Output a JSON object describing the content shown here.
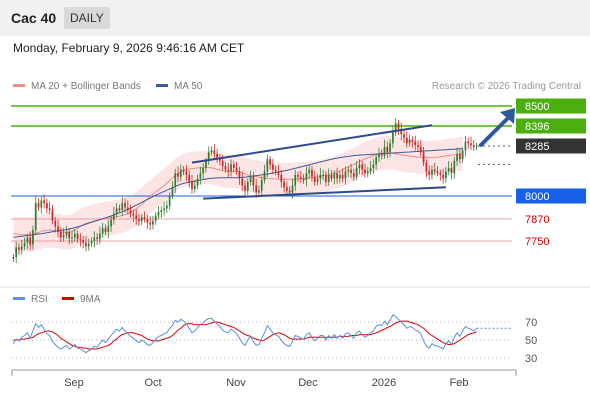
{
  "header": {
    "symbol": "Cac 40",
    "timeframe": "DAILY"
  },
  "timestamp": "Monday, February 9, 2026 9:46:16 AM CET",
  "legend": {
    "ma20": "MA 20 + Bollinger Bands",
    "ma50": "MA 50",
    "rsi": "RSI",
    "ma9": "9MA"
  },
  "credit": "Research © 2026 Trading Central",
  "colors": {
    "candle_up": "#2e7d32",
    "candle_down": "#c62828",
    "bollinger_fill": "#fde0e0",
    "ma20": "#f28b82",
    "ma50": "#3d5a99",
    "target": "#4caf10",
    "support_blue": "#1560e6",
    "support_red": "#cc0000",
    "current": "#333333",
    "channel": "#2e4a8a",
    "rsi": "#5b8fd9",
    "rsi_ma": "#dd0000"
  },
  "chart_data": [
    {
      "type": "line",
      "subtype": "candlestick",
      "y_axis": {
        "ticks": [
          "8500",
          "8396",
          "8285",
          "8000",
          "7870",
          "7750"
        ],
        "min": 7660,
        "max": 8620
      },
      "x_axis": {
        "labels": [
          "Sep",
          "Oct",
          "Nov",
          "Dec",
          "2026",
          "Feb"
        ]
      },
      "levels": [
        {
          "label": "8500",
          "value": 8500,
          "role": "target"
        },
        {
          "label": "8396",
          "value": 8396,
          "role": "target"
        },
        {
          "label": "8285",
          "value": 8285,
          "role": "current"
        },
        {
          "label": "8000",
          "value": 8000,
          "role": "pivot"
        },
        {
          "label": "7870",
          "value": 7870,
          "role": "support"
        },
        {
          "label": "7750",
          "value": 7750,
          "role": "support"
        }
      ],
      "close": [
        7660,
        7715,
        7700,
        7720,
        7740,
        7770,
        7730,
        7810,
        7960,
        7935,
        7975,
        7960,
        7930,
        7920,
        7860,
        7830,
        7800,
        7770,
        7780,
        7800,
        7765,
        7770,
        7790,
        7760,
        7755,
        7740,
        7720,
        7735,
        7750,
        7770,
        7760,
        7790,
        7820,
        7800,
        7830,
        7865,
        7900,
        7930,
        7920,
        7960,
        7935,
        7920,
        7900,
        7890,
        7870,
        7860,
        7880,
        7870,
        7850,
        7840,
        7860,
        7890,
        7910,
        7920,
        7930,
        7945,
        8000,
        8050,
        8130,
        8110,
        8150,
        8140,
        8120,
        8080,
        8040,
        8060,
        8100,
        8130,
        8160,
        8200,
        8250,
        8260,
        8240,
        8220,
        8200,
        8170,
        8150,
        8140,
        8180,
        8160,
        8140,
        8100,
        8060,
        8030,
        8080,
        8110,
        8060,
        8020,
        8030,
        8090,
        8140,
        8210,
        8180,
        8150,
        8140,
        8120,
        8080,
        8050,
        8030,
        8020,
        8060,
        8120,
        8110,
        8100,
        8090,
        8130,
        8150,
        8110,
        8080,
        8100,
        8120,
        8120,
        8080,
        8120,
        8100,
        8130,
        8100,
        8120,
        8100,
        8140,
        8150,
        8130,
        8110,
        8160,
        8180,
        8150,
        8130,
        8140,
        8160,
        8180,
        8220,
        8240,
        8230,
        8280,
        8250,
        8300,
        8360,
        8410,
        8380,
        8350,
        8330,
        8300,
        8320,
        8310,
        8290,
        8280,
        8250,
        8190,
        8140,
        8120,
        8150,
        8140,
        8130,
        8120,
        8100,
        8140,
        8160,
        8130,
        8200,
        8240,
        8210,
        8260,
        8310,
        8300,
        8290,
        8280,
        8285
      ],
      "ma20": [
        7790,
        7788,
        7784,
        7784,
        7785,
        7785,
        7782,
        7784,
        7792,
        7797,
        7801,
        7807,
        7809,
        7810,
        7808,
        7806,
        7804,
        7801,
        7799,
        7797,
        7798,
        7801,
        7810,
        7819,
        7830,
        7839,
        7846,
        7850,
        7855,
        7859,
        7862,
        7866,
        7870,
        7873,
        7875,
        7877,
        7880,
        7883,
        7886,
        7890,
        7895,
        7900,
        7907,
        7916,
        7928,
        7940,
        7953,
        7968,
        7983,
        7996,
        8010,
        8023,
        8036,
        8047,
        8059,
        8074,
        8088,
        8102,
        8117,
        8128,
        8137,
        8145,
        8151,
        8154,
        8156,
        8158,
        8160,
        8161,
        8161,
        8162,
        8162,
        8160,
        8157,
        8152,
        8148,
        8145,
        8142,
        8140,
        8140,
        8140,
        8140,
        8138,
        8133,
        8127,
        8121,
        8117,
        8113,
        8111,
        8108,
        8105,
        8103,
        8100,
        8099,
        8098,
        8097,
        8096,
        8096,
        8096,
        8095,
        8095,
        8096,
        8097,
        8098,
        8099,
        8100,
        8101,
        8103,
        8105,
        8107,
        8109,
        8112,
        8115,
        8118,
        8122,
        8127,
        8132,
        8137,
        8143,
        8150,
        8158,
        8166,
        8173,
        8180,
        8188,
        8197,
        8205,
        8212,
        8218,
        8225,
        8231,
        8236,
        8240,
        8243,
        8245,
        8246,
        8246,
        8244,
        8241,
        8238,
        8234,
        8232,
        8230,
        8228,
        8226,
        8224,
        8222,
        8220,
        8219,
        8219,
        8219,
        8219,
        8220,
        8222,
        8224,
        8226,
        8229,
        8231,
        8233,
        8235,
        8237,
        8239,
        8241
      ],
      "ma50": [
        7770,
        7772,
        7774,
        7776,
        7778,
        7780,
        7782,
        7784,
        7786,
        7788,
        7790,
        7792,
        7795,
        7798,
        7801,
        7804,
        7806,
        7808,
        7810,
        7812,
        7815,
        7819,
        7823,
        7827,
        7832,
        7837,
        7842,
        7847,
        7852,
        7857,
        7862,
        7867,
        7872,
        7877,
        7882,
        7887,
        7893,
        7899,
        7905,
        7911,
        7918,
        7925,
        7932,
        7940,
        7948,
        7956,
        7964,
        7972,
        7980,
        7988,
        7996,
        8004,
        8012,
        8019,
        8026,
        8033,
        8040,
        8047,
        8054,
        8061,
        8067,
        8072,
        8076,
        8079,
        8082,
        8085,
        8088,
        8091,
        8094,
        8097,
        8099,
        8101,
        8102,
        8103,
        8104,
        8104,
        8104,
        8104,
        8104,
        8104,
        8104,
        8105,
        8106,
        8108,
        8110,
        8112,
        8114,
        8116,
        8118,
        8120,
        8122,
        8125,
        8128,
        8131,
        8134,
        8137,
        8140,
        8143,
        8146,
        8150,
        8154,
        8158,
        8162,
        8166,
        8170,
        8174,
        8178,
        8182,
        8186,
        8190,
        8194,
        8198,
        8202,
        8206,
        8210,
        8213,
        8216,
        8219,
        8222,
        8224,
        8226,
        8228,
        8230,
        8232,
        8233,
        8234,
        8235,
        8236,
        8237,
        8238,
        8239,
        8240,
        8241,
        8242,
        8243,
        8244,
        8245,
        8246,
        8247,
        8248,
        8249,
        8250,
        8251,
        8252,
        8253,
        8254,
        8255,
        8256,
        8257,
        8258,
        8259,
        8260,
        8261,
        8262,
        8263,
        8264,
        8265,
        8266,
        8267,
        8268,
        8269,
        8270
      ]
    },
    {
      "type": "line",
      "y_axis": {
        "ticks": [
          "70",
          "50",
          "30"
        ],
        "min": 22,
        "max": 80
      },
      "series": [
        {
          "name": "RSI",
          "values": [
            46,
            51,
            49,
            53,
            55,
            58,
            52,
            60,
            68,
            64,
            67,
            62,
            57,
            55,
            48,
            45,
            42,
            40,
            42,
            44,
            40,
            42,
            45,
            41,
            40,
            38,
            36,
            38,
            40,
            43,
            42,
            46,
            50,
            47,
            51,
            55,
            59,
            62,
            60,
            64,
            60,
            57,
            54,
            52,
            49,
            47,
            50,
            48,
            45,
            44,
            47,
            51,
            54,
            55,
            57,
            58,
            63,
            66,
            72,
            70,
            73,
            71,
            68,
            63,
            58,
            60,
            64,
            67,
            69,
            72,
            74,
            74,
            71,
            68,
            65,
            61,
            59,
            58,
            62,
            60,
            57,
            52,
            47,
            44,
            50,
            54,
            48,
            44,
            45,
            52,
            58,
            66,
            62,
            58,
            56,
            54,
            50,
            46,
            44,
            43,
            48,
            55,
            54,
            52,
            51,
            56,
            58,
            53,
            49,
            52,
            55,
            55,
            50,
            55,
            52,
            56,
            52,
            55,
            52,
            57,
            58,
            55,
            52,
            58,
            60,
            56,
            53,
            55,
            58,
            60,
            65,
            67,
            66,
            71,
            67,
            72,
            78,
            76,
            73,
            70,
            67,
            63,
            65,
            64,
            61,
            60,
            57,
            49,
            43,
            41,
            46,
            44,
            43,
            42,
            40,
            46,
            49,
            45,
            53,
            58,
            54,
            60,
            65,
            63,
            62,
            60,
            63
          ]
        },
        {
          "name": "9MA",
          "values": [
            50,
            50,
            50,
            51,
            51,
            52,
            52,
            53,
            55,
            57,
            58,
            59,
            60,
            60,
            59,
            57,
            55,
            52,
            50,
            48,
            46,
            44,
            43,
            42,
            42,
            41,
            41,
            40,
            40,
            40,
            40,
            41,
            42,
            43,
            44,
            46,
            49,
            51,
            54,
            56,
            57,
            58,
            58,
            58,
            57,
            56,
            55,
            53,
            51,
            50,
            49,
            49,
            49,
            50,
            51,
            52,
            53,
            55,
            58,
            61,
            63,
            66,
            68,
            68,
            68,
            67,
            67,
            67,
            67,
            67,
            68,
            69,
            70,
            70,
            69,
            68,
            67,
            66,
            65,
            64,
            62,
            60,
            58,
            56,
            55,
            54,
            52,
            51,
            50,
            49,
            50,
            52,
            54,
            56,
            57,
            58,
            57,
            56,
            54,
            52,
            51,
            51,
            51,
            51,
            51,
            52,
            53,
            53,
            53,
            53,
            53,
            53,
            53,
            53,
            53,
            53,
            53,
            54,
            54,
            54,
            54,
            55,
            55,
            55,
            56,
            56,
            56,
            56,
            56,
            57,
            58,
            59,
            61,
            62,
            64,
            65,
            67,
            69,
            70,
            71,
            71,
            71,
            70,
            69,
            68,
            67,
            65,
            63,
            60,
            57,
            55,
            53,
            51,
            49,
            47,
            46,
            45,
            45,
            46,
            48,
            50,
            52,
            54,
            56,
            57,
            58,
            59
          ]
        }
      ]
    }
  ]
}
